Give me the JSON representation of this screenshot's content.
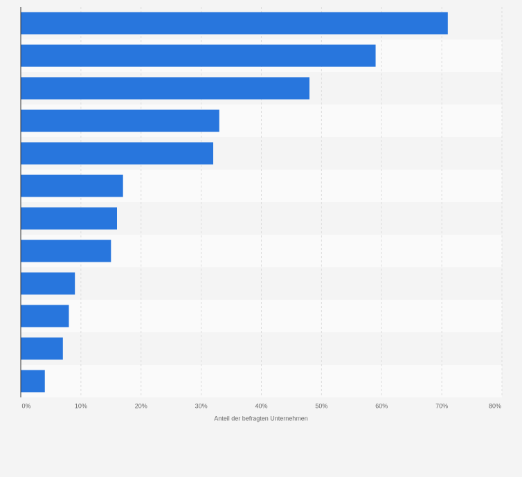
{
  "chart_data": {
    "type": "barh",
    "categories": [
      null,
      null,
      null,
      null,
      null,
      null,
      null,
      null,
      null,
      null,
      null,
      null
    ],
    "values": [
      71,
      59,
      48,
      33,
      32,
      17,
      16,
      15,
      9,
      8,
      7,
      4
    ],
    "color": "#2876dd",
    "xlabel": "Anteil der befragten Unternehmen",
    "xlim": [
      0,
      80
    ],
    "xticks": [
      {
        "value": 0,
        "label": "0%"
      },
      {
        "value": 10,
        "label": "10%"
      },
      {
        "value": 20,
        "label": "20%"
      },
      {
        "value": 30,
        "label": "30%"
      },
      {
        "value": 40,
        "label": "40%"
      },
      {
        "value": 50,
        "label": "50%"
      },
      {
        "value": 60,
        "label": "60%"
      },
      {
        "value": 70,
        "label": "70%"
      },
      {
        "value": 80,
        "label": "80%"
      }
    ],
    "grid": true
  }
}
